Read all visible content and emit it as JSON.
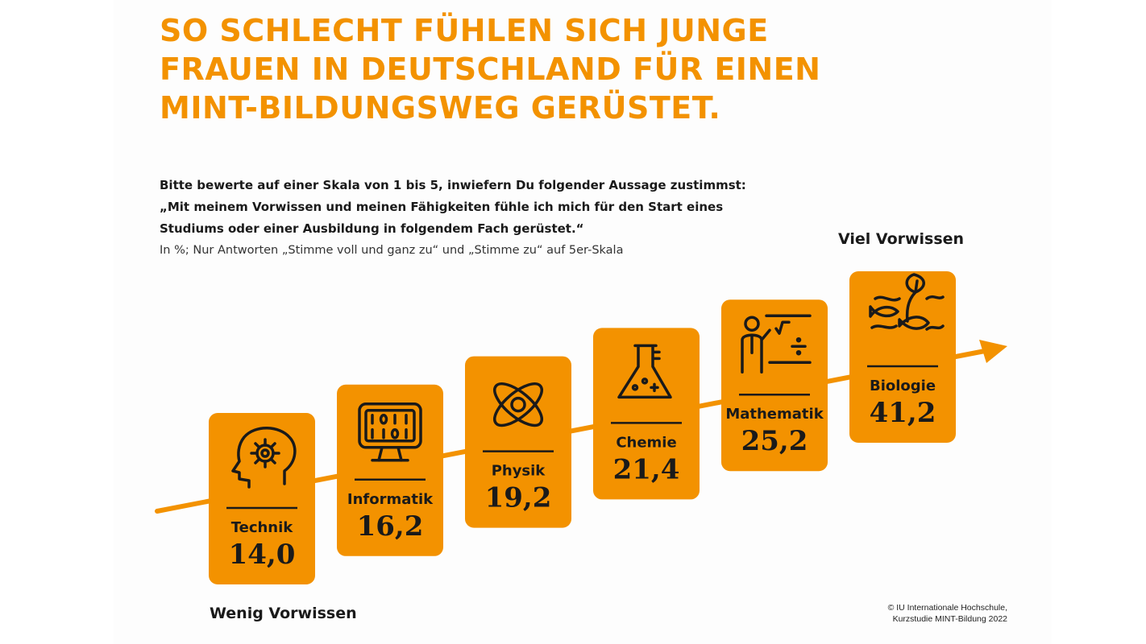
{
  "title": {
    "lines": [
      "SO SCHLECHT FÜHLEN SICH JUNGE",
      "FRAUEN IN DEUTSCHLAND FÜR EINEN",
      "MINT-BILDUNGSWEG GERÜSTET."
    ]
  },
  "question": {
    "bold_lines": [
      "Bitte bewerte auf einer Skala von 1 bis 5, inwiefern Du folgender Aussage zustimmst:",
      "„Mit meinem Vorwissen und meinen Fähigkeiten fühle ich mich für den Start eines",
      "Studiums oder einer Ausbildung in folgendem Fach gerüstet.“"
    ],
    "note": "In %; Nur Antworten „Stimme voll und ganz zu“ und „Stimme zu“ auf 5er-Skala"
  },
  "axis_labels": {
    "high": "Viel Vorwissen",
    "low": "Wenig Vorwissen"
  },
  "source": {
    "lines": [
      "© IU Internationale Hochschule,",
      "Kurzstudie MINT-Bildung 2022"
    ]
  },
  "colors": {
    "accent": "#f39200",
    "text": "#1a1a1a"
  },
  "chart_data": {
    "type": "bar",
    "categories": [
      "Technik",
      "Informatik",
      "Physik",
      "Chemie",
      "Mathematik",
      "Biologie"
    ],
    "values": [
      14.0,
      16.2,
      19.2,
      21.4,
      25.2,
      41.2
    ],
    "value_labels": [
      "14,0",
      "16,2",
      "19,2",
      "21,4",
      "25,2",
      "41,2"
    ],
    "icons": [
      "head-gear-icon",
      "monitor-binary-icon",
      "atom-icon",
      "flask-icon",
      "teacher-board-icon",
      "plant-fish-icon"
    ],
    "unit": "%"
  }
}
